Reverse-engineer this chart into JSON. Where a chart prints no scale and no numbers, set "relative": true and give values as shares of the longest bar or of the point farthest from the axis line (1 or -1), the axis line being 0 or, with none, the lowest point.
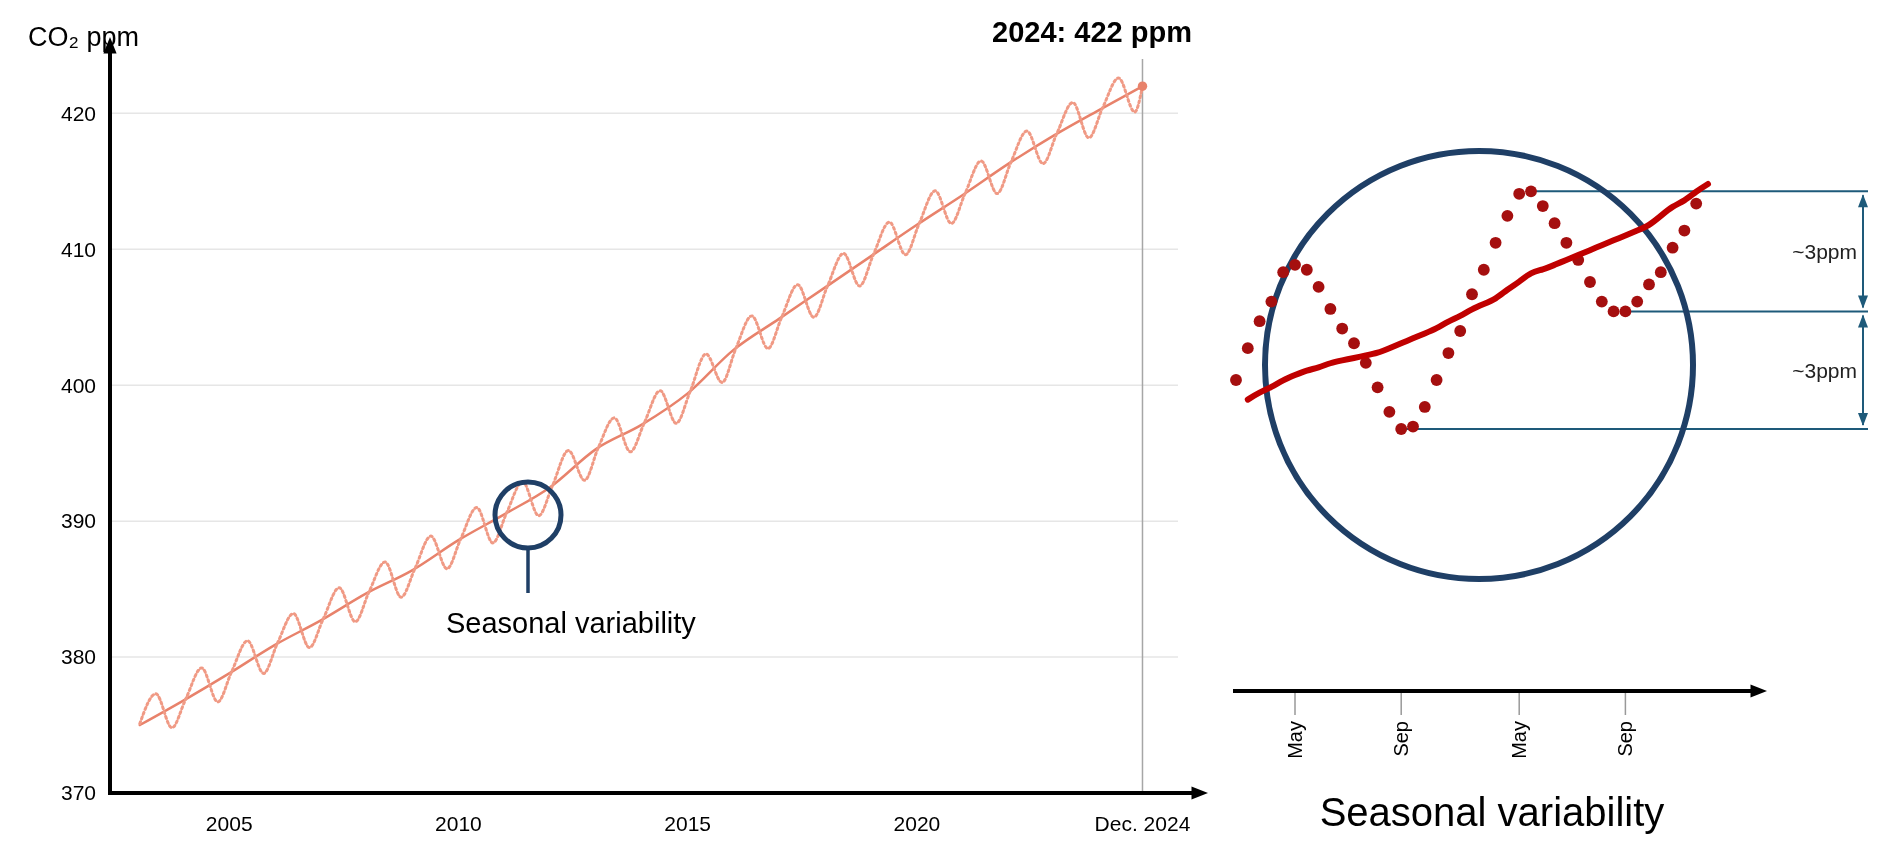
{
  "chart_data": [
    {
      "type": "line",
      "title": "2024: 422 ppm",
      "ylabel": "CO₂  ppm",
      "xlim": [
        2002.4,
        2026
      ],
      "ylim": [
        370,
        424
      ],
      "xticks": [
        2005,
        2010,
        2015,
        2020,
        {
          "value": 2024.92,
          "label": "Dec. 2024"
        }
      ],
      "yticks": [
        370,
        380,
        390,
        400,
        410,
        420
      ],
      "grid": "y",
      "series": [
        {
          "color": "#e8826b",
          "line_style": "solid",
          "x": [
            2003.05,
            2004,
            2005,
            2006,
            2007,
            2008,
            2009,
            2010,
            2011,
            2012,
            2013,
            2014,
            2015,
            2016,
            2017,
            2018,
            2019,
            2020,
            2021,
            2022,
            2023,
            2024,
            2024.92
          ],
          "values": [
            375.0,
            376.8,
            378.8,
            380.9,
            382.7,
            384.7,
            386.4,
            388.6,
            390.5,
            392.5,
            395.3,
            397.1,
            399.4,
            402.6,
            404.9,
            407.2,
            409.5,
            411.8,
            414.0,
            416.3,
            418.4,
            420.3,
            422.0
          ]
        },
        {
          "color": "#f09a85",
          "line_style": "dotted",
          "x": [
            2003.05,
            2003.4,
            2003.75,
            2004.05,
            2004.4,
            2004.75,
            2005.05,
            2005.4,
            2005.75,
            2006.05,
            2006.4,
            2006.75,
            2007.05,
            2007.4,
            2007.75,
            2008.05,
            2008.4,
            2008.75,
            2009.05,
            2009.4,
            2009.75,
            2010.05,
            2010.4,
            2010.75,
            2011.05,
            2011.4,
            2011.75,
            2012.05,
            2012.4,
            2012.75,
            2013.05,
            2013.4,
            2013.75,
            2014.05,
            2014.4,
            2014.75,
            2015.05,
            2015.4,
            2015.75,
            2016.05,
            2016.4,
            2016.75,
            2017.05,
            2017.4,
            2017.75,
            2018.05,
            2018.4,
            2018.75,
            2019.05,
            2019.4,
            2019.75,
            2020.05,
            2020.4,
            2020.75,
            2021.05,
            2021.4,
            2021.75,
            2022.05,
            2022.4,
            2022.75,
            2023.05,
            2023.4,
            2023.75,
            2024.05,
            2024.4,
            2024.75,
            2024.92
          ],
          "values": [
            375.1,
            377.3,
            374.8,
            376.9,
            379.2,
            376.7,
            378.9,
            381.2,
            378.8,
            381.0,
            383.2,
            380.7,
            382.8,
            385.1,
            382.6,
            384.8,
            387.0,
            384.4,
            386.5,
            388.9,
            386.5,
            388.7,
            391.0,
            388.4,
            390.6,
            392.9,
            390.4,
            392.6,
            395.2,
            393.0,
            395.4,
            397.6,
            395.1,
            397.2,
            399.6,
            397.2,
            399.5,
            402.3,
            400.2,
            402.7,
            405.1,
            402.7,
            405.0,
            407.4,
            405.0,
            407.3,
            409.7,
            407.3,
            409.6,
            412.0,
            409.6,
            411.9,
            414.3,
            411.9,
            414.1,
            416.5,
            414.1,
            416.4,
            418.7,
            416.3,
            418.5,
            420.8,
            418.2,
            420.4,
            422.6,
            420.1,
            422.0
          ]
        },
        {
          "type": "scatter",
          "color": "#e8826b",
          "marker": "circle",
          "x": [
            2024.92
          ],
          "values": [
            422.0
          ]
        }
      ],
      "ref_lines": [
        {
          "axis": "x",
          "value": 2024.92,
          "color": "#a6a6a6"
        }
      ],
      "annotations": [
        "Seasonal variability"
      ]
    },
    {
      "type": "line",
      "relative": true,
      "xlabel": "Seasonal variability",
      "tick_labels": "x",
      "categories": [
        null,
        null,
        null,
        null,
        null,
        "May",
        null,
        null,
        null,
        null,
        null,
        null,
        null,
        null,
        "Sep",
        null,
        null,
        null,
        null,
        null,
        null,
        null,
        null,
        null,
        "May",
        null,
        null,
        null,
        null,
        null,
        null,
        null,
        null,
        "Sep",
        null,
        null,
        null,
        null,
        null,
        null,
        null
      ],
      "series": [
        {
          "type": "scatter",
          "color": "#a50f0f",
          "marker": "circle",
          "values": [
            0.2,
            0.33,
            0.44,
            0.52,
            0.64,
            0.67,
            0.65,
            0.58,
            0.49,
            0.41,
            0.35,
            0.27,
            0.17,
            0.07,
            0.0,
            0.01,
            0.09,
            0.2,
            0.31,
            0.4,
            0.55,
            0.65,
            0.76,
            0.87,
            0.96,
            0.97,
            0.91,
            0.84,
            0.76,
            0.69,
            0.6,
            0.52,
            0.48,
            0.48,
            0.52,
            0.59,
            0.64,
            0.74,
            0.81,
            0.92,
            null
          ]
        },
        {
          "color": "#c00000",
          "line_style": "solid",
          "values": [
            null,
            0.12,
            0.15,
            0.17,
            0.2,
            0.22,
            0.24,
            0.25,
            0.27,
            0.28,
            0.29,
            0.3,
            0.31,
            0.33,
            0.35,
            0.37,
            0.39,
            0.41,
            0.44,
            0.46,
            0.49,
            0.51,
            0.53,
            0.57,
            0.6,
            0.64,
            0.65,
            0.67,
            0.69,
            0.71,
            0.73,
            0.75,
            0.77,
            0.79,
            0.81,
            0.83,
            0.87,
            0.91,
            0.93,
            0.97,
            1.0
          ]
        }
      ],
      "ref_lines": [
        {
          "axis": "y",
          "value": 0.97,
          "color": "#1e5a7a"
        },
        {
          "axis": "y",
          "value": 0.48,
          "color": "#1e5a7a"
        },
        {
          "axis": "y",
          "value": 0.0,
          "color": "#1e5a7a"
        }
      ],
      "annotations": [
        "~3ppm",
        "~3ppm"
      ]
    }
  ]
}
